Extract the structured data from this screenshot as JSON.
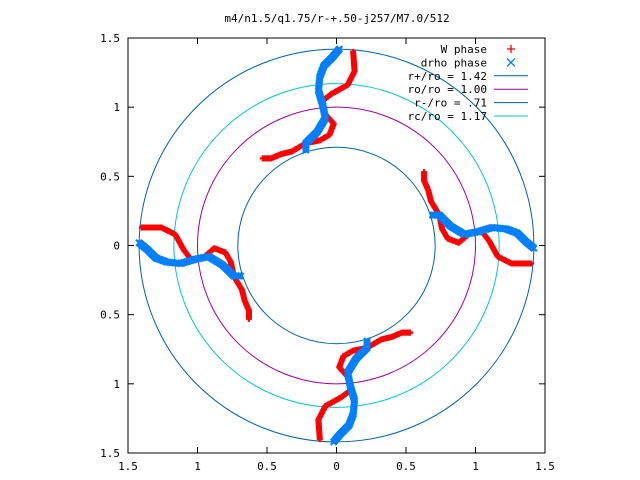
{
  "chart_data": {
    "type": "scatter",
    "title": "m4/n1.5/q1.75/r-+.50-j257/M7.0/512",
    "xlim": [
      -1.5,
      1.5
    ],
    "ylim": [
      -1.5,
      1.5
    ],
    "x_ticks": [
      -1.5,
      -1,
      -0.5,
      0,
      0.5,
      1,
      1.5
    ],
    "y_ticks": [
      -1.5,
      -1,
      -0.5,
      0,
      0.5,
      1,
      1.5
    ],
    "x_tick_labels": [
      "1.5",
      "1",
      "0.5",
      "0",
      "0.5",
      "1",
      "1.5"
    ],
    "y_tick_labels": [
      "1.5",
      "1",
      "0.5",
      "0",
      "0.5",
      "1",
      "1.5"
    ],
    "grid": false,
    "legend_position": "top-right",
    "legend": [
      {
        "label": "W phase",
        "kind": "points",
        "marker": "+",
        "color": "#ff0000"
      },
      {
        "label": "drho phase",
        "kind": "points",
        "marker": "x",
        "color": "#0080ff"
      },
      {
        "label": "r+/ro = 1.42",
        "kind": "line",
        "color": "#0060ad"
      },
      {
        "label": "ro/ro = 1.00",
        "kind": "line",
        "color": "#a000a0"
      },
      {
        "label": "r-/ro = .71",
        "kind": "line",
        "color": "#0060ad"
      },
      {
        "label": "rc/ro = 1.17",
        "kind": "line",
        "color": "#00c8c8"
      }
    ],
    "circles": [
      {
        "name": "r+/ro",
        "radius": 1.42,
        "color": "#0060ad"
      },
      {
        "name": "ro/ro",
        "radius": 1.0,
        "color": "#a000a0"
      },
      {
        "name": "r-/ro",
        "radius": 0.71,
        "color": "#0060ad"
      },
      {
        "name": "rc/ro",
        "radius": 1.17,
        "color": "#00c8c8"
      }
    ],
    "series": [
      {
        "name": "W phase",
        "color": "#ff0000",
        "marker": "+",
        "arms": [
          [
            [
              0.12,
              1.4
            ],
            [
              0.13,
              1.26
            ],
            [
              0.08,
              1.16
            ],
            [
              -0.03,
              1.1
            ],
            [
              -0.11,
              1.04
            ],
            [
              -0.09,
              0.96
            ],
            [
              -0.02,
              0.88
            ],
            [
              -0.05,
              0.8
            ],
            [
              -0.12,
              0.76
            ],
            [
              -0.22,
              0.74
            ],
            [
              -0.32,
              0.68
            ],
            [
              -0.4,
              0.66
            ],
            [
              -0.47,
              0.63
            ],
            [
              -0.53,
              0.63
            ]
          ],
          [
            [
              1.4,
              -0.13
            ],
            [
              1.26,
              -0.13
            ],
            [
              1.16,
              -0.08
            ],
            [
              1.1,
              0.03
            ],
            [
              1.04,
              0.11
            ],
            [
              0.96,
              0.09
            ],
            [
              0.88,
              0.02
            ],
            [
              0.8,
              0.05
            ],
            [
              0.76,
              0.12
            ],
            [
              0.74,
              0.22
            ],
            [
              0.68,
              0.32
            ],
            [
              0.66,
              0.4
            ],
            [
              0.63,
              0.47
            ],
            [
              0.63,
              0.53
            ]
          ],
          [
            [
              -0.12,
              -1.4
            ],
            [
              -0.13,
              -1.26
            ],
            [
              -0.08,
              -1.16
            ],
            [
              0.03,
              -1.1
            ],
            [
              0.11,
              -1.04
            ],
            [
              0.09,
              -0.96
            ],
            [
              0.02,
              -0.88
            ],
            [
              0.05,
              -0.8
            ],
            [
              0.12,
              -0.76
            ],
            [
              0.22,
              -0.74
            ],
            [
              0.32,
              -0.68
            ],
            [
              0.4,
              -0.66
            ],
            [
              0.47,
              -0.63
            ],
            [
              0.53,
              -0.63
            ]
          ],
          [
            [
              -1.4,
              0.13
            ],
            [
              -1.26,
              0.13
            ],
            [
              -1.16,
              0.08
            ],
            [
              -1.1,
              -0.03
            ],
            [
              -1.04,
              -0.11
            ],
            [
              -0.96,
              -0.09
            ],
            [
              -0.88,
              -0.02
            ],
            [
              -0.8,
              -0.05
            ],
            [
              -0.76,
              -0.12
            ],
            [
              -0.74,
              -0.22
            ],
            [
              -0.68,
              -0.32
            ],
            [
              -0.66,
              -0.4
            ],
            [
              -0.63,
              -0.47
            ],
            [
              -0.63,
              -0.53
            ]
          ]
        ]
      },
      {
        "name": "drho phase",
        "color": "#0080ff",
        "marker": "x",
        "arms": [
          [
            [
              0.02,
              1.42
            ],
            [
              -0.03,
              1.36
            ],
            [
              -0.09,
              1.3
            ],
            [
              -0.12,
              1.22
            ],
            [
              -0.13,
              1.12
            ],
            [
              -0.1,
              1.02
            ],
            [
              -0.08,
              0.92
            ],
            [
              -0.14,
              0.82
            ],
            [
              -0.22,
              0.74
            ],
            [
              -0.22,
              0.69
            ]
          ],
          [
            [
              1.42,
              -0.02
            ],
            [
              1.36,
              0.03
            ],
            [
              1.3,
              0.09
            ],
            [
              1.22,
              0.12
            ],
            [
              1.12,
              0.13
            ],
            [
              1.02,
              0.1
            ],
            [
              0.92,
              0.08
            ],
            [
              0.82,
              0.14
            ],
            [
              0.74,
              0.22
            ],
            [
              0.69,
              0.22
            ]
          ],
          [
            [
              -0.02,
              -1.42
            ],
            [
              0.03,
              -1.36
            ],
            [
              0.09,
              -1.3
            ],
            [
              0.12,
              -1.22
            ],
            [
              0.13,
              -1.12
            ],
            [
              0.1,
              -1.02
            ],
            [
              0.08,
              -0.92
            ],
            [
              0.14,
              -0.82
            ],
            [
              0.22,
              -0.74
            ],
            [
              0.22,
              -0.69
            ]
          ],
          [
            [
              -1.42,
              0.02
            ],
            [
              -1.36,
              -0.03
            ],
            [
              -1.3,
              -0.09
            ],
            [
              -1.22,
              -0.12
            ],
            [
              -1.12,
              -0.13
            ],
            [
              -1.02,
              -0.1
            ],
            [
              -0.92,
              -0.08
            ],
            [
              -0.82,
              -0.14
            ],
            [
              -0.74,
              -0.22
            ],
            [
              -0.69,
              -0.22
            ]
          ]
        ]
      }
    ]
  }
}
